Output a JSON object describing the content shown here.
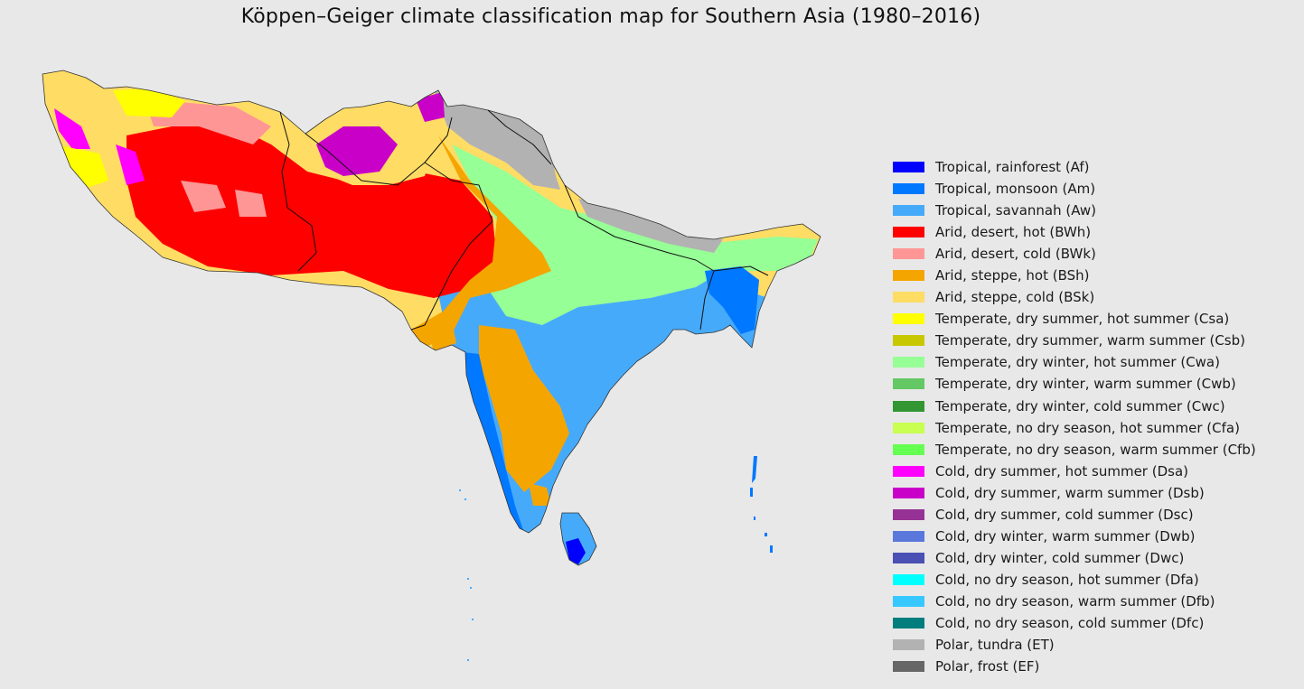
{
  "title": "Köppen–Geiger climate classification map for Southern Asia (1980–2016)",
  "legend": [
    {
      "label": "Tropical, rainforest (Af)",
      "color": "#0000ff"
    },
    {
      "label": "Tropical, monsoon (Am)",
      "color": "#0078ff"
    },
    {
      "label": "Tropical, savannah (Aw)",
      "color": "#46aafa"
    },
    {
      "label": "Arid, desert, hot (BWh)",
      "color": "#ff0000"
    },
    {
      "label": "Arid, desert, cold (BWk)",
      "color": "#ff9696"
    },
    {
      "label": "Arid, steppe, hot (BSh)",
      "color": "#f5a500"
    },
    {
      "label": "Arid, steppe, cold (BSk)",
      "color": "#ffdc64"
    },
    {
      "label": "Temperate, dry summer, hot summer (Csa)",
      "color": "#ffff00"
    },
    {
      "label": "Temperate, dry summer, warm summer (Csb)",
      "color": "#c8c800"
    },
    {
      "label": "Temperate, dry winter, hot summer (Cwa)",
      "color": "#96ff96"
    },
    {
      "label": "Temperate, dry winter, warm summer (Cwb)",
      "color": "#64c864"
    },
    {
      "label": "Temperate, dry winter, cold summer (Cwc)",
      "color": "#329632"
    },
    {
      "label": "Temperate, no dry season, hot summer (Cfa)",
      "color": "#c8ff50"
    },
    {
      "label": "Temperate, no dry season, warm summer (Cfb)",
      "color": "#64ff50"
    },
    {
      "label": "Cold, dry summer, hot summer (Dsa)",
      "color": "#ff00ff"
    },
    {
      "label": "Cold, dry summer, warm summer (Dsb)",
      "color": "#c800c8"
    },
    {
      "label": "Cold, dry summer, cold summer (Dsc)",
      "color": "#963296"
    },
    {
      "label": "Cold, dry winter, warm summer (Dwb)",
      "color": "#5a78dc"
    },
    {
      "label": "Cold, dry winter, cold summer (Dwc)",
      "color": "#4b50b4"
    },
    {
      "label": "Cold, no dry season, hot summer (Dfa)",
      "color": "#00ffff"
    },
    {
      "label": "Cold, no dry season, warm summer (Dfb)",
      "color": "#37c8ff"
    },
    {
      "label": "Cold, no dry season, cold summer (Dfc)",
      "color": "#007d7d"
    },
    {
      "label": "Polar, tundra (ET)",
      "color": "#b2b2b2"
    },
    {
      "label": "Polar, frost (EF)",
      "color": "#666666"
    }
  ]
}
